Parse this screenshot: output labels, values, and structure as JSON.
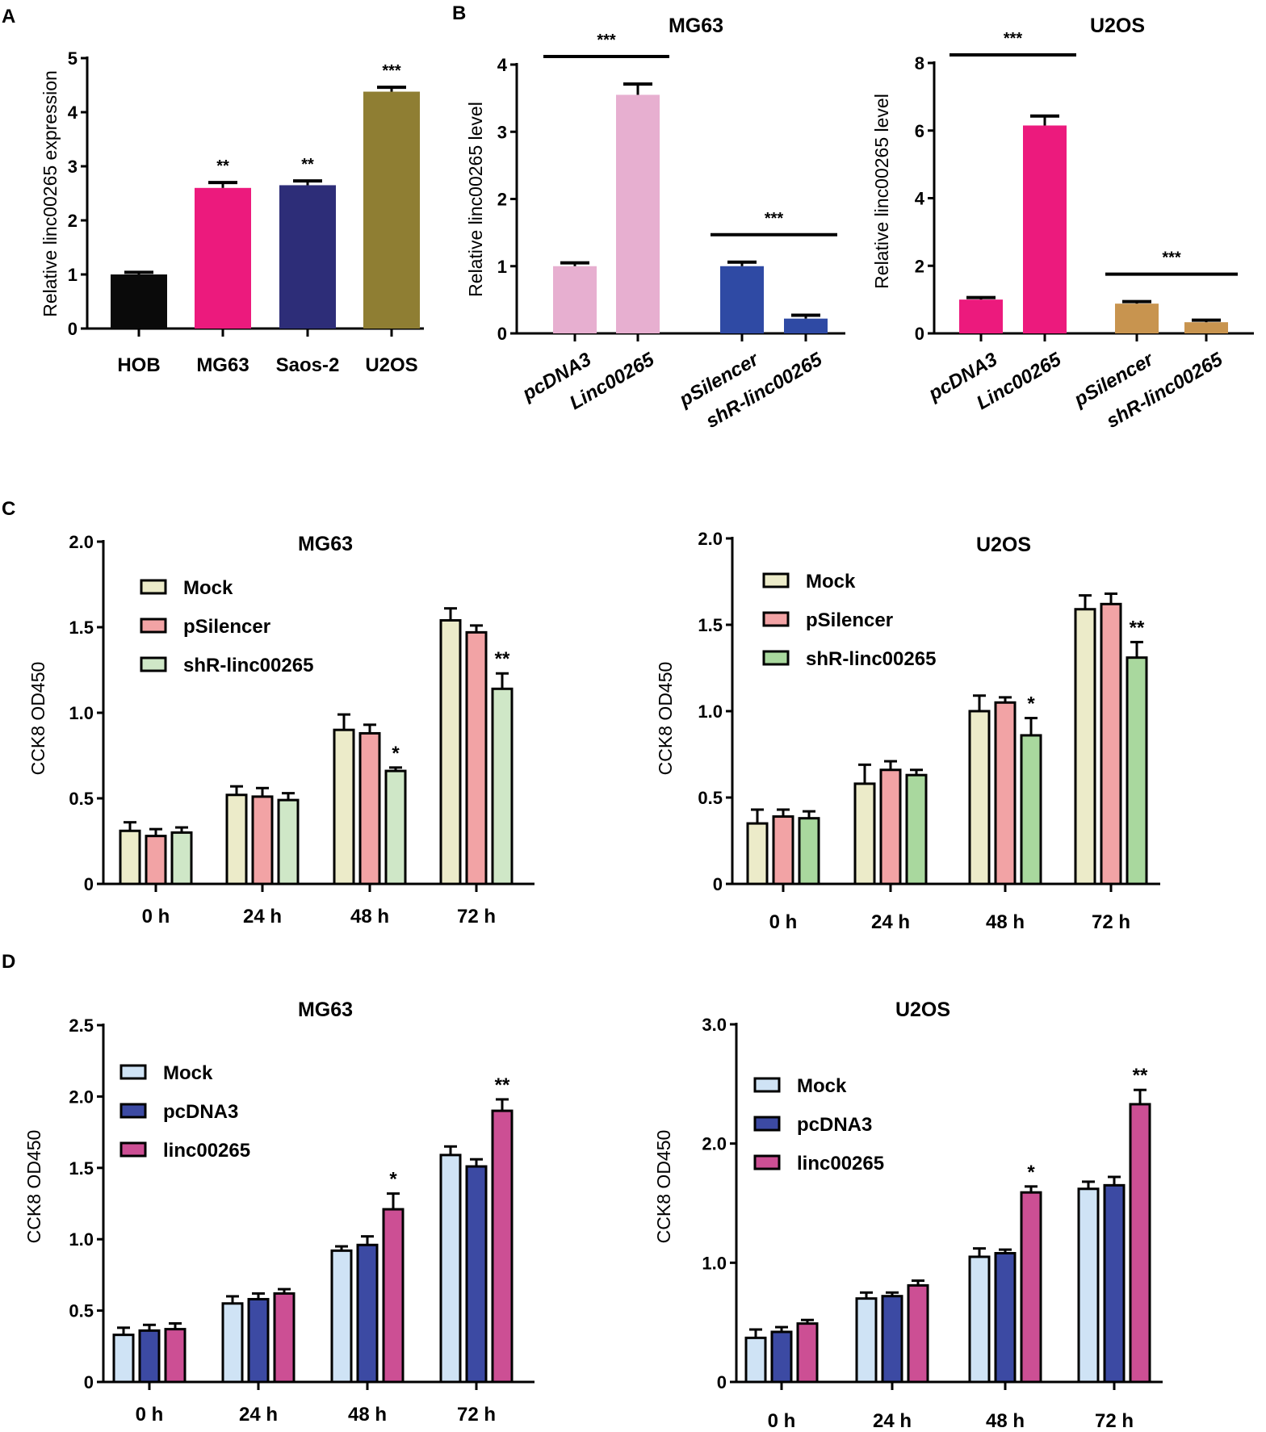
{
  "panel_labels": [
    "A",
    "B",
    "C",
    "D"
  ],
  "chart_data": [
    {
      "id": "A",
      "type": "bar",
      "title": "",
      "ylabel": "Relative linc00265  expression",
      "ylim": [
        0,
        5
      ],
      "yticks": [
        "0",
        "1",
        "2",
        "3",
        "4",
        "5"
      ],
      "categories": [
        "HOB",
        "MG63",
        "Saos-2",
        "U2OS"
      ],
      "values": [
        1.0,
        2.6,
        2.65,
        4.38
      ],
      "errors": [
        0.04,
        0.1,
        0.08,
        0.08
      ],
      "colors": [
        "#0a0a0a",
        "#ec1a7d",
        "#2d2d78",
        "#8f7e33"
      ],
      "significance": [
        "",
        "**",
        "**",
        "***"
      ]
    },
    {
      "id": "B-MG63",
      "type": "bar",
      "title": "MG63",
      "ylabel": "Relative linc00265 level",
      "ylim": [
        0,
        4
      ],
      "yticks": [
        "0",
        "1",
        "2",
        "3",
        "4"
      ],
      "categories": [
        "pcDNA3",
        "Linc00265",
        "pSilencer",
        "shR-linc00265"
      ],
      "values": [
        1.0,
        3.55,
        1.0,
        0.22
      ],
      "errors": [
        0.05,
        0.16,
        0.06,
        0.05
      ],
      "colors": [
        "#e7afd0",
        "#e7afd0",
        "#2f4aa4",
        "#2f4aa4"
      ],
      "brackets": [
        {
          "from": 0,
          "to": 1,
          "label": "***"
        },
        {
          "from": 2,
          "to": 3,
          "label": "***"
        }
      ]
    },
    {
      "id": "B-U2OS",
      "type": "bar",
      "title": "U2OS",
      "ylabel": "Relative linc00265 level",
      "ylim": [
        0,
        8
      ],
      "yticks": [
        "0",
        "2",
        "4",
        "6",
        "8"
      ],
      "categories": [
        "pcDNA3",
        "Linc00265",
        "pSilencer",
        "shR-linc00265"
      ],
      "values": [
        1.0,
        6.15,
        0.88,
        0.33
      ],
      "errors": [
        0.06,
        0.28,
        0.06,
        0.06
      ],
      "colors": [
        "#ec1a7d",
        "#ec1a7d",
        "#c8944f",
        "#c8944f"
      ],
      "brackets": [
        {
          "from": 0,
          "to": 1,
          "label": "***"
        },
        {
          "from": 2,
          "to": 3,
          "label": "***"
        }
      ]
    },
    {
      "id": "C-MG63",
      "type": "bar",
      "title": "MG63",
      "ylabel": "CCK8 OD450",
      "ylim": [
        0,
        2.0
      ],
      "yticks": [
        "0",
        "0.5",
        "1.0",
        "1.5",
        "2.0"
      ],
      "categories": [
        "0 h",
        "24 h",
        "48 h",
        "72 h"
      ],
      "series": [
        {
          "name": "Mock",
          "color": "#ecebc9",
          "values": [
            0.31,
            0.52,
            0.9,
            1.54
          ],
          "errors": [
            0.05,
            0.05,
            0.09,
            0.07
          ],
          "stars": [
            "",
            "",
            "",
            ""
          ]
        },
        {
          "name": "pSilencer",
          "color": "#f2a3a5",
          "values": [
            0.28,
            0.51,
            0.88,
            1.47
          ],
          "errors": [
            0.04,
            0.05,
            0.05,
            0.04
          ],
          "stars": [
            "",
            "",
            "",
            ""
          ]
        },
        {
          "name": "shR-linc00265",
          "color": "#cfe7c7",
          "values": [
            0.3,
            0.49,
            0.66,
            1.14
          ],
          "errors": [
            0.03,
            0.04,
            0.02,
            0.09
          ],
          "stars": [
            "",
            "",
            "*",
            "**"
          ]
        }
      ]
    },
    {
      "id": "C-U2OS",
      "type": "bar",
      "title": "U2OS",
      "ylabel": "CCK8 OD450",
      "ylim": [
        0,
        2.0
      ],
      "yticks": [
        "0",
        "0.5",
        "1.0",
        "1.5",
        "2.0"
      ],
      "categories": [
        "0 h",
        "24 h",
        "48 h",
        "72 h"
      ],
      "series": [
        {
          "name": "Mock",
          "color": "#ecebc9",
          "values": [
            0.35,
            0.58,
            1.0,
            1.59
          ],
          "errors": [
            0.08,
            0.11,
            0.09,
            0.08
          ],
          "stars": [
            "",
            "",
            "",
            ""
          ]
        },
        {
          "name": "pSilencer",
          "color": "#f2a3a5",
          "values": [
            0.39,
            0.66,
            1.05,
            1.62
          ],
          "errors": [
            0.04,
            0.05,
            0.03,
            0.06
          ],
          "stars": [
            "",
            "",
            "",
            ""
          ]
        },
        {
          "name": "shR-linc00265",
          "color": "#a9d89e",
          "values": [
            0.38,
            0.63,
            0.86,
            1.31
          ],
          "errors": [
            0.04,
            0.03,
            0.1,
            0.09
          ],
          "stars": [
            "",
            "",
            "*",
            "**"
          ]
        }
      ]
    },
    {
      "id": "D-MG63",
      "type": "bar",
      "title": "MG63",
      "ylabel": "CCK8 OD450",
      "ylim": [
        0,
        2.5
      ],
      "yticks": [
        "0",
        "0.5",
        "1.0",
        "1.5",
        "2.0",
        "2.5"
      ],
      "categories": [
        "0 h",
        "24 h",
        "48 h",
        "72 h"
      ],
      "series": [
        {
          "name": "Mock",
          "color": "#cfe3f5",
          "values": [
            0.33,
            0.55,
            0.92,
            1.59
          ],
          "errors": [
            0.05,
            0.05,
            0.03,
            0.06
          ],
          "stars": [
            "",
            "",
            "",
            ""
          ]
        },
        {
          "name": "pcDNA3",
          "color": "#3c4aa3",
          "values": [
            0.36,
            0.58,
            0.96,
            1.51
          ],
          "errors": [
            0.04,
            0.04,
            0.06,
            0.05
          ],
          "stars": [
            "",
            "",
            "",
            ""
          ]
        },
        {
          "name": "linc00265",
          "color": "#cc4f94",
          "values": [
            0.37,
            0.62,
            1.21,
            1.9
          ],
          "errors": [
            0.04,
            0.03,
            0.11,
            0.08
          ],
          "stars": [
            "",
            "",
            "*",
            "**"
          ]
        }
      ]
    },
    {
      "id": "D-U2OS",
      "type": "bar",
      "title": "U2OS",
      "ylabel": "CCK8 OD450",
      "ylim": [
        0,
        3.0
      ],
      "yticks": [
        "0",
        "1.0",
        "2.0",
        "3.0"
      ],
      "categories": [
        "0 h",
        "24 h",
        "48 h",
        "72 h"
      ],
      "series": [
        {
          "name": "Mock",
          "color": "#cfe3f5",
          "values": [
            0.37,
            0.7,
            1.05,
            1.62
          ],
          "errors": [
            0.07,
            0.05,
            0.07,
            0.06
          ],
          "stars": [
            "",
            "",
            "",
            ""
          ]
        },
        {
          "name": "pcDNA3",
          "color": "#3c4aa3",
          "values": [
            0.42,
            0.72,
            1.08,
            1.65
          ],
          "errors": [
            0.04,
            0.03,
            0.03,
            0.07
          ],
          "stars": [
            "",
            "",
            "",
            ""
          ]
        },
        {
          "name": "linc00265",
          "color": "#cc4f94",
          "values": [
            0.49,
            0.81,
            1.59,
            2.33
          ],
          "errors": [
            0.03,
            0.04,
            0.05,
            0.12
          ],
          "stars": [
            "",
            "",
            "*",
            "**"
          ]
        }
      ]
    }
  ]
}
